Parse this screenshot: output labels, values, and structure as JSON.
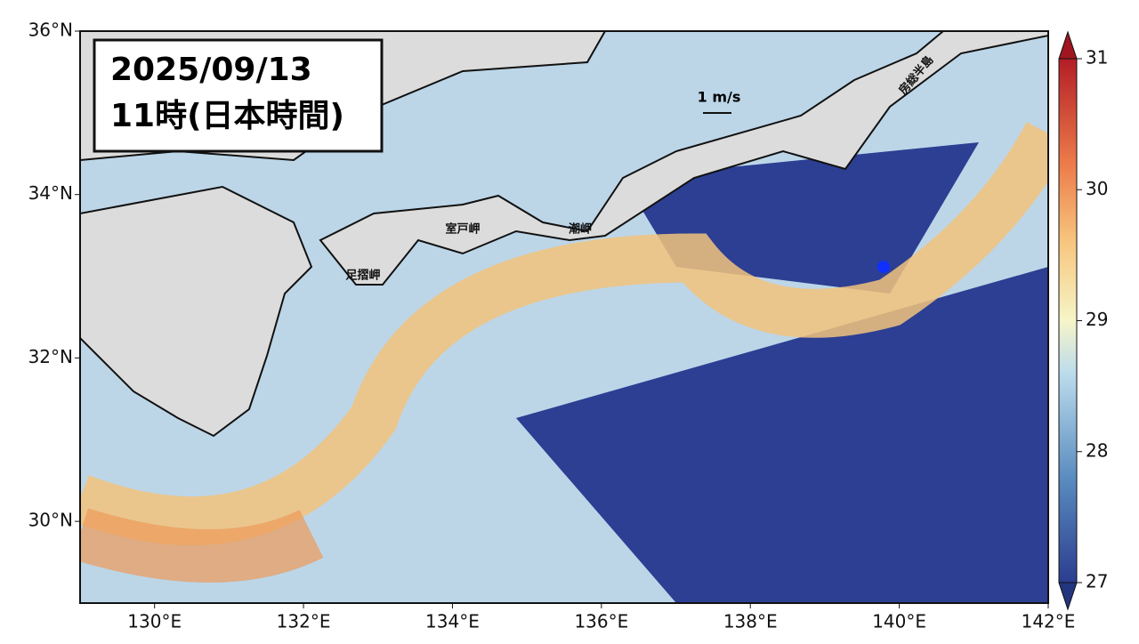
{
  "title": {
    "date": "2025/09/13",
    "time": "11時(日本時間)"
  },
  "map": {
    "xlim": [
      129,
      142
    ],
    "ylim": [
      29,
      36
    ],
    "xticks": [
      {
        "value": 130,
        "label": "130°E"
      },
      {
        "value": 132,
        "label": "132°E"
      },
      {
        "value": 134,
        "label": "134°E"
      },
      {
        "value": 136,
        "label": "136°E"
      },
      {
        "value": 138,
        "label": "138°E"
      },
      {
        "value": 140,
        "label": "140°E"
      },
      {
        "value": 142,
        "label": "142°E"
      }
    ],
    "yticks": [
      {
        "value": 30,
        "label": "30°N"
      },
      {
        "value": 32,
        "label": "32°N"
      },
      {
        "value": 34,
        "label": "34°N"
      },
      {
        "value": 36,
        "label": "36°N"
      }
    ],
    "places": {
      "muroto": "室戸岬",
      "shiono": "潮岬",
      "ashizuri": "足摺岬",
      "boso": "房総半島"
    },
    "scale_label": "1 m/s"
  },
  "colorbar": {
    "lim": [
      27,
      31
    ],
    "ticks": [
      27,
      28,
      29,
      30,
      31
    ]
  }
}
